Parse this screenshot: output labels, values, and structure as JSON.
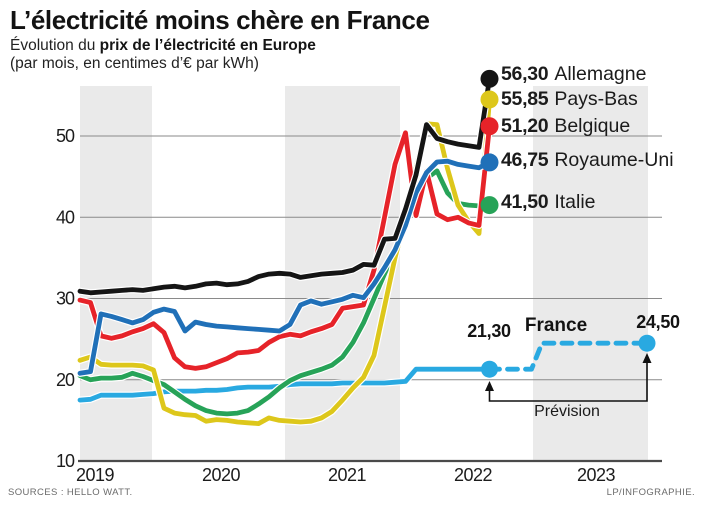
{
  "header": {
    "title": "L’électricité moins chère en France",
    "subtitle_prefix": "Évolution du ",
    "subtitle_bold": "prix de l’électricité en Europe",
    "subtitle_line2": "(par mois, en centimes d’€ par kWh)"
  },
  "footer": {
    "left": "SOURCES : HELLO WATT.",
    "right": "LP/INFOGRAPHIE."
  },
  "colors": {
    "allemagne": "#151515",
    "pays_bas": "#ddc71b",
    "belgique": "#e62329",
    "royaume_uni": "#2070b8",
    "italie": "#27a358",
    "france": "#29a9e1",
    "band": "#eaeaea",
    "grid": "#8a8a8a",
    "axis": "#4a4a4a"
  },
  "legend": [
    {
      "value": "56,30",
      "name": "Allemagne",
      "color": "#151515"
    },
    {
      "value": "55,85",
      "name": "Pays-Bas",
      "color": "#ddc71b"
    },
    {
      "value": "51,20",
      "name": "Belgique",
      "color": "#e62329"
    },
    {
      "value": "46,75",
      "name": "Royaume-Uni",
      "color": "#2070b8"
    },
    {
      "value": "41,50",
      "name": "Italie",
      "color": "#27a358"
    }
  ],
  "france": {
    "name": "France",
    "current_label": "21,30",
    "forecast_label": "24,50",
    "prevision_label": "Prévision"
  },
  "axis": {
    "y_ticks": [
      10,
      20,
      30,
      40,
      50
    ],
    "years": [
      "2019",
      "2020",
      "2021",
      "2022",
      "2023"
    ]
  },
  "chart_data": {
    "type": "line",
    "title": "Évolution du prix de l’électricité en Europe",
    "ylabel": "centimes d'euro par kWh",
    "ylim": [
      10,
      57
    ],
    "x_monthly_from": "2019-06",
    "x_monthly_to": "2022-09",
    "grid": true,
    "series": [
      {
        "name": "Allemagne",
        "color": "#151515",
        "end_value": 56.3,
        "dot_dy": -6,
        "values": [
          30.9,
          30.7,
          30.8,
          30.9,
          31.0,
          31.1,
          31.0,
          31.2,
          31.4,
          31.5,
          31.3,
          31.5,
          31.8,
          31.9,
          31.7,
          31.8,
          32.1,
          32.7,
          33.0,
          33.1,
          33.0,
          32.6,
          32.8,
          33.0,
          33.1,
          33.2,
          33.5,
          34.2,
          34.1,
          37.3,
          37.4,
          41.0,
          45.2,
          51.4,
          49.7,
          49.3,
          49.0,
          48.8,
          48.6,
          56.3
        ]
      },
      {
        "name": "Pays-Bas",
        "color": "#ddc71b",
        "end_value": 55.85,
        "dot_dy": 11,
        "values": [
          22.4,
          22.8,
          21.9,
          21.8,
          21.8,
          21.8,
          21.7,
          21.2,
          16.5,
          15.9,
          15.7,
          15.6,
          14.9,
          15.1,
          15.0,
          14.8,
          14.7,
          14.6,
          15.3,
          15.0,
          14.9,
          14.8,
          14.9,
          15.3,
          16.1,
          17.5,
          19.0,
          20.3,
          23.0,
          29.0,
          35.0,
          40.0,
          46.0,
          51.5,
          51.4,
          46.0,
          41.5,
          39.5,
          38.0,
          55.85
        ]
      },
      {
        "name": "Belgique",
        "color": "#e62329",
        "end_value": 51.2,
        "dot_dy": 0,
        "values": [
          29.8,
          29.5,
          25.4,
          25.1,
          25.4,
          25.9,
          26.3,
          26.9,
          25.8,
          22.7,
          21.6,
          21.4,
          21.6,
          22.1,
          22.6,
          23.3,
          23.4,
          23.6,
          24.6,
          25.3,
          25.6,
          25.4,
          25.9,
          26.3,
          26.8,
          28.8,
          29.0,
          29.2,
          33.5,
          40.0,
          46.5,
          50.4,
          40.2,
          45.7,
          40.4,
          39.7,
          40.0,
          39.3,
          39.0,
          51.2
        ]
      },
      {
        "name": "Royaume-Uni",
        "color": "#2070b8",
        "end_value": 46.75,
        "dot_dy": 0,
        "values": [
          20.8,
          21.0,
          28.1,
          27.8,
          27.4,
          27.0,
          27.4,
          28.3,
          28.7,
          28.4,
          26.0,
          27.1,
          26.8,
          26.6,
          26.5,
          26.4,
          26.3,
          26.2,
          26.1,
          26.0,
          26.8,
          29.2,
          29.7,
          29.3,
          29.6,
          29.9,
          30.4,
          30.1,
          31.8,
          33.8,
          36.0,
          39.0,
          43.0,
          45.5,
          46.8,
          46.9,
          46.5,
          46.3,
          46.1,
          46.75
        ]
      },
      {
        "name": "Italie",
        "color": "#27a358",
        "end_value": 41.5,
        "dot_dy": 0,
        "values": [
          20.5,
          20.0,
          20.2,
          20.2,
          20.3,
          20.8,
          20.4,
          19.9,
          19.4,
          18.5,
          17.6,
          16.8,
          16.2,
          15.9,
          15.8,
          15.9,
          16.2,
          17.0,
          17.9,
          19.0,
          19.9,
          20.5,
          20.9,
          21.3,
          21.8,
          22.8,
          24.6,
          27.0,
          30.0,
          33.0,
          36.0,
          39.2,
          42.5,
          44.8,
          45.7,
          43.0,
          41.7,
          41.5,
          41.4,
          41.5
        ]
      },
      {
        "name": "France",
        "color": "#29a9e1",
        "end_value": 21.3,
        "dot_dy": 0,
        "values": [
          17.5,
          17.6,
          18.1,
          18.1,
          18.1,
          18.1,
          18.2,
          18.3,
          18.5,
          18.6,
          18.6,
          18.6,
          18.7,
          18.7,
          18.8,
          19.0,
          19.1,
          19.1,
          19.1,
          19.2,
          19.4,
          19.5,
          19.5,
          19.5,
          19.5,
          19.6,
          19.6,
          19.6,
          19.6,
          19.6,
          19.7,
          19.8,
          21.3,
          21.3,
          21.3,
          21.3,
          21.3,
          21.3,
          21.3,
          21.3
        ]
      }
    ],
    "france_forecast": {
      "style": "dashed",
      "from": "2022-09",
      "to": "2023-12",
      "final_value": 24.5,
      "values": [
        21.3,
        21.3,
        21.3,
        21.3,
        21.3,
        24.5,
        24.5,
        24.5,
        24.5,
        24.5,
        24.5,
        24.5,
        24.5,
        24.5,
        24.5,
        24.5
      ]
    }
  }
}
